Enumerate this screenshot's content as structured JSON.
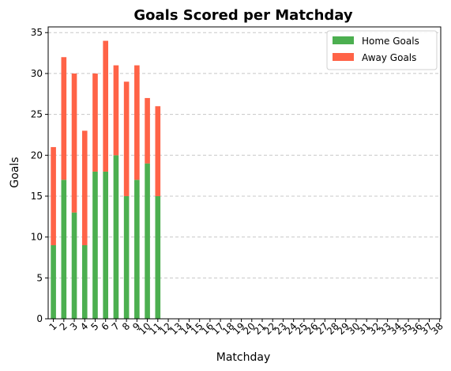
{
  "chart_data": {
    "type": "bar",
    "stacked": true,
    "title": "Goals Scored per Matchday",
    "xlabel": "Matchday",
    "ylabel": "Goals",
    "categories": [
      "1",
      "2",
      "3",
      "4",
      "5",
      "6",
      "7",
      "8",
      "9",
      "10",
      "11",
      "12",
      "13",
      "14",
      "15",
      "16",
      "17",
      "18",
      "19",
      "20",
      "21",
      "22",
      "23",
      "24",
      "25",
      "26",
      "27",
      "28",
      "29",
      "30",
      "31",
      "32",
      "33",
      "34",
      "35",
      "36",
      "37",
      "38"
    ],
    "series": [
      {
        "name": "Home Goals",
        "color": "#4caf50",
        "values": [
          9,
          17,
          13,
          9,
          18,
          18,
          20,
          15,
          17,
          19,
          15,
          0,
          0,
          0,
          0,
          0,
          0,
          0,
          0,
          0,
          0,
          0,
          0,
          0,
          0,
          0,
          0,
          0,
          0,
          0,
          0,
          0,
          0,
          0,
          0,
          0,
          0,
          0
        ]
      },
      {
        "name": "Away Goals",
        "color": "#ff6347",
        "values": [
          12,
          15,
          17,
          14,
          12,
          16,
          11,
          14,
          14,
          8,
          11,
          0,
          0,
          0,
          0,
          0,
          0,
          0,
          0,
          0,
          0,
          0,
          0,
          0,
          0,
          0,
          0,
          0,
          0,
          0,
          0,
          0,
          0,
          0,
          0,
          0,
          0,
          0
        ]
      }
    ],
    "ylim": [
      0,
      35.7
    ],
    "yticks": [
      0,
      5,
      10,
      15,
      20,
      25,
      30,
      35
    ],
    "grid": "y-dashed",
    "legend": "top-right"
  }
}
